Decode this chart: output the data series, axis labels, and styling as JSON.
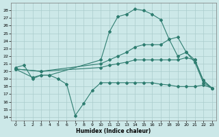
{
  "xlabel": "Humidex (Indice chaleur)",
  "background_color": "#cce8e8",
  "grid_color": "#aacccc",
  "line_color": "#2e7d70",
  "xlim": [
    -0.5,
    23.5
  ],
  "ylim": [
    13.5,
    29
  ],
  "yticks": [
    14,
    15,
    16,
    17,
    18,
    19,
    20,
    21,
    22,
    23,
    24,
    25,
    26,
    27,
    28
  ],
  "xticks": [
    0,
    1,
    2,
    3,
    4,
    5,
    6,
    7,
    8,
    9,
    10,
    11,
    12,
    13,
    14,
    15,
    16,
    17,
    18,
    19,
    20,
    21,
    22,
    23
  ],
  "line1_x": [
    0,
    1,
    2,
    3,
    4,
    10,
    11,
    12,
    13,
    14,
    15,
    16,
    17,
    18,
    19,
    20,
    21,
    22,
    23
  ],
  "line1_y": [
    20.5,
    20.8,
    19.0,
    19.5,
    19.5,
    21.5,
    25.2,
    27.2,
    27.5,
    28.2,
    28.0,
    27.5,
    26.8,
    24.2,
    22.0,
    22.5,
    21.2,
    18.5,
    17.8
  ],
  "line2_x": [
    0,
    3,
    10,
    11,
    12,
    13,
    14,
    15,
    16,
    17,
    18,
    19,
    20,
    21,
    22,
    23
  ],
  "line2_y": [
    20.3,
    20.0,
    21.0,
    21.5,
    22.0,
    22.5,
    23.2,
    23.5,
    23.5,
    23.5,
    24.2,
    24.5,
    22.5,
    21.5,
    18.8,
    17.8
  ],
  "line3_x": [
    0,
    3,
    10,
    11,
    12,
    13,
    14,
    15,
    16,
    17,
    18,
    19,
    20,
    21,
    22,
    23
  ],
  "line3_y": [
    20.3,
    20.0,
    20.5,
    20.8,
    21.0,
    21.2,
    21.5,
    21.5,
    21.5,
    21.5,
    21.5,
    21.5,
    21.8,
    21.5,
    18.8,
    17.8
  ],
  "line4_x": [
    0,
    2,
    3,
    4,
    5,
    6,
    7,
    8,
    9,
    10,
    11,
    12,
    13,
    14,
    15,
    16,
    17,
    18,
    19,
    20,
    21,
    22,
    23
  ],
  "line4_y": [
    20.3,
    19.2,
    19.5,
    19.5,
    19.0,
    18.3,
    14.2,
    15.8,
    17.5,
    18.5,
    18.5,
    18.5,
    18.5,
    18.5,
    18.5,
    18.5,
    18.3,
    18.2,
    18.0,
    18.0,
    18.0,
    18.2,
    17.8
  ]
}
